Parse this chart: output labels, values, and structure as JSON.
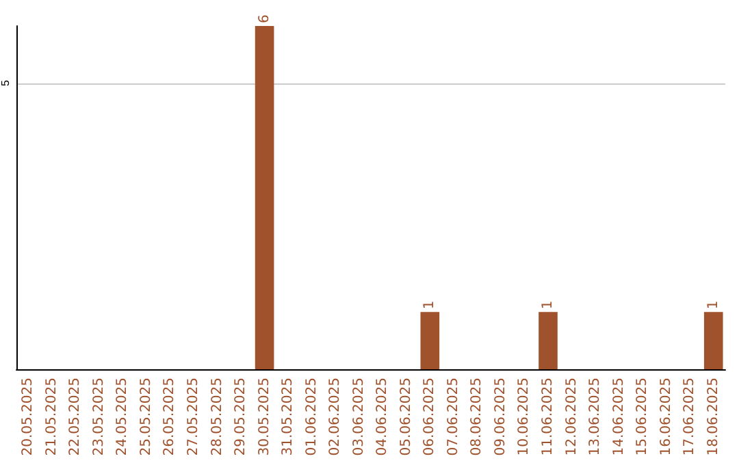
{
  "chart_data": {
    "type": "bar",
    "categories": [
      "20.05.2025",
      "21.05.2025",
      "22.05.2025",
      "23.05.2025",
      "24.05.2025",
      "25.05.2025",
      "26.05.2025",
      "27.05.2025",
      "28.05.2025",
      "29.05.2025",
      "30.05.2025",
      "31.05.2025",
      "01.06.2025",
      "02.06.2025",
      "03.06.2025",
      "04.06.2025",
      "05.06.2025",
      "06.06.2025",
      "07.06.2025",
      "08.06.2025",
      "09.06.2025",
      "10.06.2025",
      "11.06.2025",
      "12.06.2025",
      "13.06.2025",
      "14.06.2025",
      "15.06.2025",
      "16.06.2025",
      "17.06.2025",
      "18.06.2025"
    ],
    "values": [
      0,
      0,
      0,
      0,
      0,
      0,
      0,
      0,
      0,
      0,
      6,
      0,
      0,
      0,
      0,
      0,
      0,
      1,
      0,
      0,
      0,
      0,
      1,
      0,
      0,
      0,
      0,
      0,
      0,
      1
    ],
    "value_labels": [
      null,
      null,
      null,
      null,
      null,
      null,
      null,
      null,
      null,
      null,
      "6",
      null,
      null,
      null,
      null,
      null,
      null,
      "1",
      null,
      null,
      null,
      null,
      "1",
      null,
      null,
      null,
      null,
      null,
      null,
      "1"
    ],
    "color": "#a0522d",
    "ylim": [
      0,
      6
    ],
    "yticks": [
      5
    ],
    "grid": "y"
  }
}
